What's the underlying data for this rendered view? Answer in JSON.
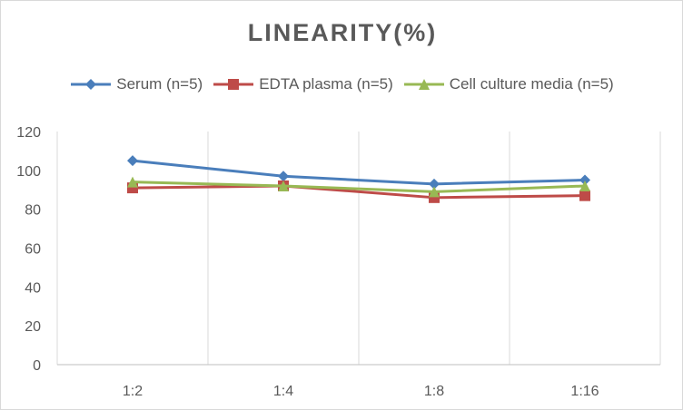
{
  "chart_data": {
    "type": "line",
    "title": "LINEARITY(%)",
    "categories": [
      "1:2",
      "1:4",
      "1:8",
      "1:16"
    ],
    "ylim": [
      0,
      120
    ],
    "yticks": [
      0,
      20,
      40,
      60,
      80,
      100,
      120
    ],
    "grid": "vertical",
    "legend_position": "top",
    "series": [
      {
        "name": "Serum (n=5)",
        "values": [
          105,
          97,
          93,
          95
        ],
        "color": "#4a7ebb",
        "marker": "diamond"
      },
      {
        "name": "EDTA plasma (n=5)",
        "values": [
          91,
          92,
          86,
          87
        ],
        "color": "#be4b48",
        "marker": "square"
      },
      {
        "name": "Cell culture media (n=5)",
        "values": [
          94,
          92,
          89,
          92
        ],
        "color": "#98b954",
        "marker": "triangle"
      }
    ]
  }
}
